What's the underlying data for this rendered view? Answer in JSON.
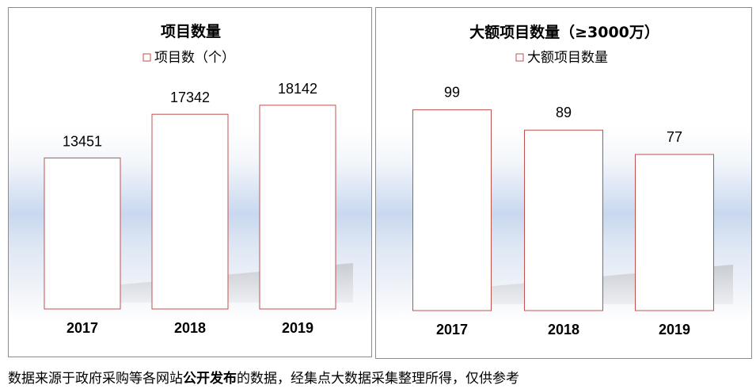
{
  "chart_data": [
    {
      "type": "bar",
      "title": "项目数量",
      "categories": [
        "2017",
        "2018",
        "2019"
      ],
      "series": [
        {
          "name": "项目数（个）",
          "values": [
            13451,
            17342,
            18142
          ]
        }
      ],
      "ylim": [
        0,
        23000
      ],
      "grid": false,
      "legend_position": "top",
      "colors": {
        "bar_edge": "#c0504d",
        "bar_fill": "#ffffff",
        "text": "#000000"
      }
    },
    {
      "type": "bar",
      "title": "大额项目数量（≥3000万）",
      "categories": [
        "2017",
        "2018",
        "2019"
      ],
      "series": [
        {
          "name": "大额项目数量",
          "values": [
            99,
            89,
            77
          ]
        }
      ],
      "ylim": [
        0,
        127
      ],
      "grid": false,
      "legend_position": "top",
      "colors": {
        "bar_edge": "#c0504d",
        "bar_fill": "#ffffff",
        "text": "#000000"
      }
    }
  ],
  "footnote": {
    "before": "数据来源于政府采购等各网站",
    "bold": "公开发布",
    "after": "的数据，经集点大数据采集整理所得，仅供参考"
  }
}
